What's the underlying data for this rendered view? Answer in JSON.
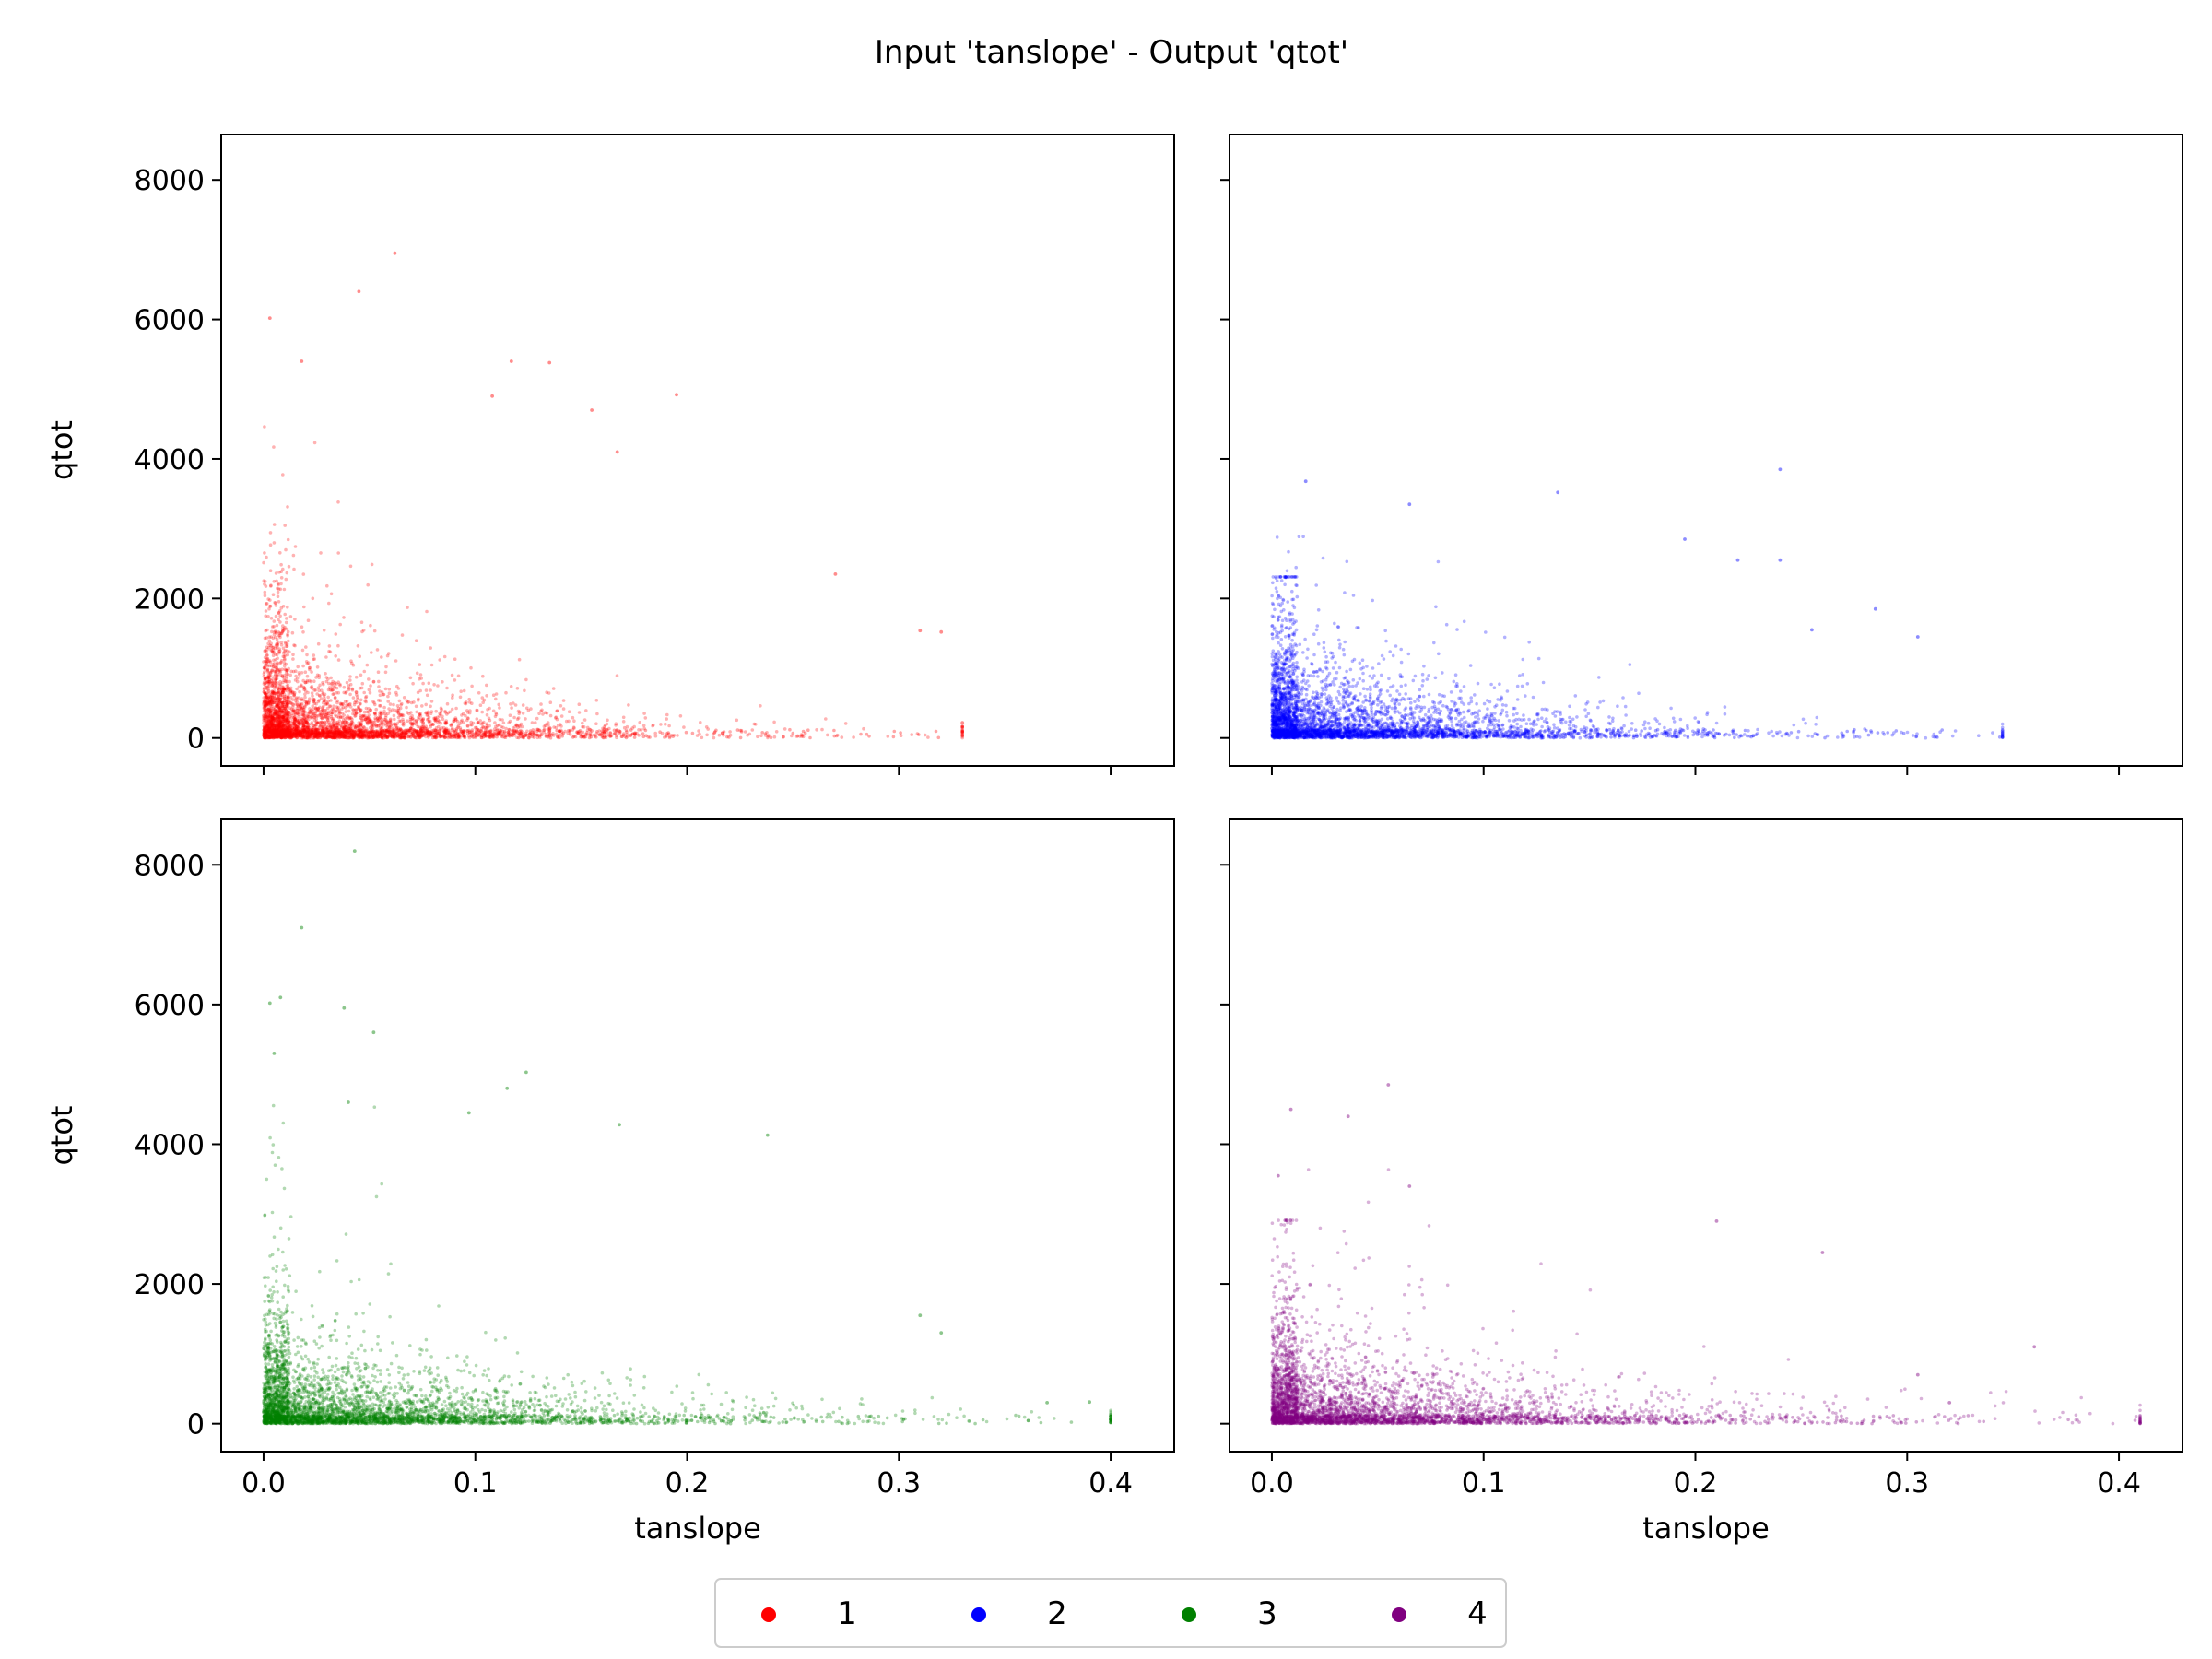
{
  "figure": {
    "title": "Input 'tanslope' - Output 'qtot'"
  },
  "legend": {
    "placement": "bottom-center",
    "entries": [
      {
        "label": "1",
        "color": "#ff0000"
      },
      {
        "label": "2",
        "color": "#0000ff"
      },
      {
        "label": "3",
        "color": "#008000"
      },
      {
        "label": "4",
        "color": "#800080"
      }
    ]
  },
  "chart_data": [
    {
      "type": "scatter",
      "panel": "top-left",
      "series": [
        {
          "name": "1",
          "color": "#ff0000"
        }
      ],
      "xlabel": "",
      "ylabel": "qtot",
      "xlim": [
        -0.02,
        0.43
      ],
      "ylim": [
        -400,
        8650
      ],
      "xticks": [
        0.0,
        0.1,
        0.2,
        0.3,
        0.4
      ],
      "yticks": [
        0,
        2000,
        4000,
        6000,
        8000
      ],
      "show_x_tick_labels": false,
      "show_y_tick_labels": true,
      "x_max_observed": 0.33,
      "y_max_observed": 6950,
      "outliers": [
        [
          0.003,
          6020
        ],
        [
          0.045,
          6400
        ],
        [
          0.062,
          6950
        ],
        [
          0.018,
          5400
        ],
        [
          0.117,
          5400
        ],
        [
          0.135,
          5380
        ],
        [
          0.195,
          4920
        ],
        [
          0.155,
          4700
        ],
        [
          0.108,
          4900
        ],
        [
          0.167,
          4100
        ],
        [
          0.27,
          2350
        ],
        [
          0.31,
          1540
        ],
        [
          0.32,
          1520
        ],
        [
          0.33,
          220
        ]
      ]
    },
    {
      "type": "scatter",
      "panel": "top-right",
      "series": [
        {
          "name": "2",
          "color": "#0000ff"
        }
      ],
      "xlabel": "",
      "ylabel": "",
      "xlim": [
        -0.02,
        0.43
      ],
      "ylim": [
        -400,
        8650
      ],
      "xticks": [
        0.0,
        0.1,
        0.2,
        0.3,
        0.4
      ],
      "yticks": [
        0,
        2000,
        4000,
        6000,
        8000
      ],
      "show_x_tick_labels": false,
      "show_y_tick_labels": false,
      "x_max_observed": 0.345,
      "y_max_observed": 3850,
      "outliers": [
        [
          0.016,
          3680
        ],
        [
          0.24,
          3850
        ],
        [
          0.135,
          3520
        ],
        [
          0.065,
          3350
        ],
        [
          0.195,
          2850
        ],
        [
          0.22,
          2550
        ],
        [
          0.24,
          2550
        ],
        [
          0.305,
          1450
        ],
        [
          0.345,
          100
        ],
        [
          0.285,
          1850
        ],
        [
          0.255,
          1550
        ]
      ]
    },
    {
      "type": "scatter",
      "panel": "bottom-left",
      "series": [
        {
          "name": "3",
          "color": "#008000"
        }
      ],
      "xlabel": "tanslope",
      "ylabel": "qtot",
      "xlim": [
        -0.02,
        0.43
      ],
      "ylim": [
        -400,
        8650
      ],
      "xticks": [
        0.0,
        0.1,
        0.2,
        0.3,
        0.4
      ],
      "yticks": [
        0,
        2000,
        4000,
        6000,
        8000
      ],
      "show_x_tick_labels": true,
      "show_y_tick_labels": true,
      "x_max_observed": 0.4,
      "y_max_observed": 8200,
      "outliers": [
        [
          0.043,
          8200
        ],
        [
          0.018,
          7100
        ],
        [
          0.008,
          6100
        ],
        [
          0.003,
          6020
        ],
        [
          0.038,
          5950
        ],
        [
          0.052,
          5600
        ],
        [
          0.005,
          5300
        ],
        [
          0.124,
          5030
        ],
        [
          0.115,
          4800
        ],
        [
          0.04,
          4600
        ],
        [
          0.097,
          4450
        ],
        [
          0.168,
          4280
        ],
        [
          0.238,
          4130
        ],
        [
          0.32,
          1300
        ],
        [
          0.31,
          1550
        ],
        [
          0.37,
          300
        ],
        [
          0.4,
          60
        ],
        [
          0.39,
          310
        ]
      ]
    },
    {
      "type": "scatter",
      "panel": "bottom-right",
      "series": [
        {
          "name": "4",
          "color": "#800080"
        }
      ],
      "xlabel": "tanslope",
      "ylabel": "",
      "xlim": [
        -0.02,
        0.43
      ],
      "ylim": [
        -400,
        8650
      ],
      "xticks": [
        0.0,
        0.1,
        0.2,
        0.3,
        0.4
      ],
      "yticks": [
        0,
        2000,
        4000,
        6000,
        8000
      ],
      "show_x_tick_labels": true,
      "show_y_tick_labels": false,
      "x_max_observed": 0.41,
      "y_max_observed": 4850,
      "outliers": [
        [
          0.055,
          4850
        ],
        [
          0.009,
          4500
        ],
        [
          0.036,
          4400
        ],
        [
          0.003,
          3550
        ],
        [
          0.065,
          3400
        ],
        [
          0.21,
          2900
        ],
        [
          0.26,
          2450
        ],
        [
          0.36,
          1100
        ],
        [
          0.41,
          80
        ],
        [
          0.32,
          300
        ],
        [
          0.305,
          700
        ]
      ]
    }
  ],
  "tick_labels": {
    "x": [
      "0.0",
      "0.1",
      "0.2",
      "0.3",
      "0.4"
    ],
    "y": [
      "0",
      "2000",
      "4000",
      "6000",
      "8000"
    ]
  }
}
